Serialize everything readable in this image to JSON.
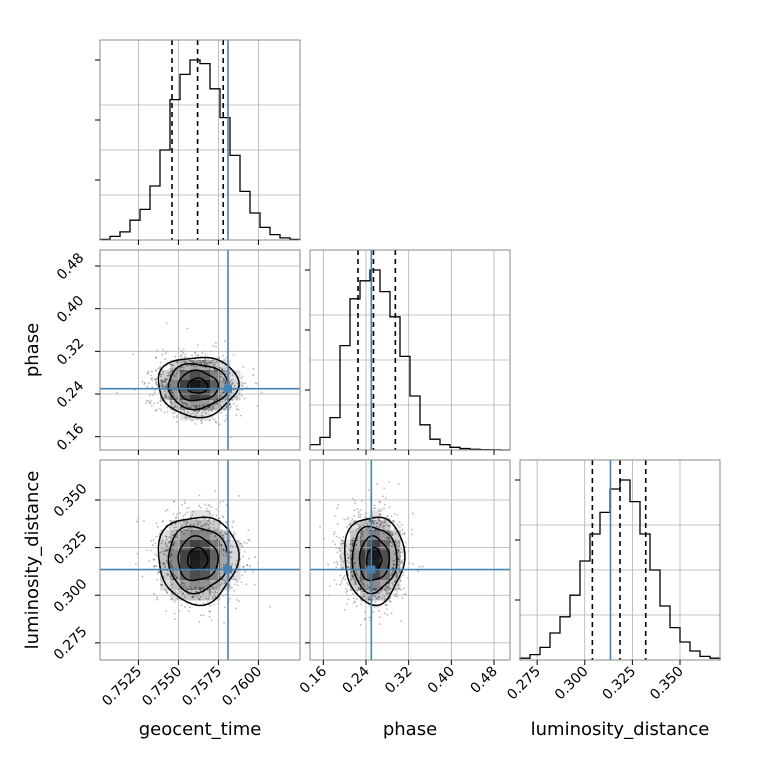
{
  "chart_data": {
    "type": "corner",
    "parameters": [
      "geocent_time",
      "phase",
      "luminosity_distance"
    ],
    "axis_labels": {
      "geocent_time": "geocent_time",
      "phase": "phase",
      "luminosity_distance": "luminosity_distance"
    },
    "ticks": {
      "geocent_time": [
        "0.7525",
        "0.7550",
        "0.7575",
        "0.7600"
      ],
      "phase": [
        "0.16",
        "0.24",
        "0.32",
        "0.40",
        "0.48"
      ],
      "luminosity_distance": [
        "0.275",
        "0.300",
        "0.325",
        "0.350"
      ]
    },
    "ranges": {
      "geocent_time": [
        0.7501,
        0.7626
      ],
      "phase": [
        0.135,
        0.51
      ],
      "luminosity_distance": [
        0.266,
        0.371
      ]
    },
    "truths": {
      "geocent_time": 0.7581,
      "phase": 0.25,
      "luminosity_distance": 0.3135
    },
    "quantiles": {
      "geocent_time": [
        0.7546,
        0.7562,
        0.7578
      ],
      "phase": [
        0.225,
        0.254,
        0.295
      ],
      "luminosity_distance": [
        0.304,
        0.3185,
        0.332
      ]
    },
    "histograms": {
      "geocent_time": [
        0.003,
        0.02,
        0.045,
        0.11,
        0.17,
        0.3,
        0.5,
        0.78,
        0.92,
        1.0,
        0.98,
        0.84,
        0.68,
        0.47,
        0.27,
        0.15,
        0.07,
        0.03,
        0.012,
        0.003
      ],
      "phase": [
        0.03,
        0.07,
        0.18,
        0.58,
        0.84,
        0.94,
        1.0,
        0.88,
        0.74,
        0.52,
        0.3,
        0.14,
        0.06,
        0.03,
        0.015,
        0.008,
        0.004,
        0.002,
        0.001,
        0.0
      ],
      "luminosity_distance": [
        0.01,
        0.03,
        0.07,
        0.15,
        0.24,
        0.36,
        0.55,
        0.7,
        0.82,
        0.95,
        1.0,
        0.88,
        0.7,
        0.5,
        0.3,
        0.18,
        0.1,
        0.05,
        0.02,
        0.01
      ]
    },
    "posterior_center": {
      "geocent_time": 0.7562,
      "phase": 0.255,
      "luminosity_distance": 0.319
    },
    "posterior_spread": {
      "geocent_time": 0.00125,
      "phase": 0.028,
      "luminosity_distance": 0.0115
    },
    "truth_color": "#4682b4",
    "quantile_style": "dashed",
    "grid": true
  }
}
